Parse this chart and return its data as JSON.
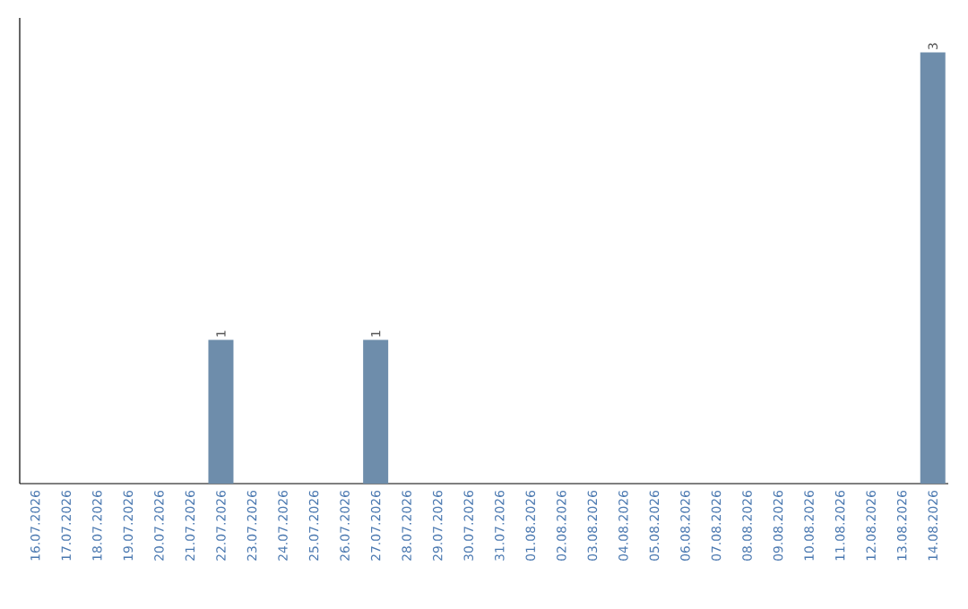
{
  "chart_data": {
    "type": "bar",
    "categories": [
      "16.07.2026",
      "17.07.2026",
      "18.07.2026",
      "19.07.2026",
      "20.07.2026",
      "21.07.2026",
      "22.07.2026",
      "23.07.2026",
      "24.07.2026",
      "25.07.2026",
      "26.07.2026",
      "27.07.2026",
      "28.07.2026",
      "29.07.2026",
      "30.07.2026",
      "31.07.2026",
      "01.08.2026",
      "02.08.2026",
      "03.08.2026",
      "04.08.2026",
      "05.08.2026",
      "06.08.2026",
      "07.08.2026",
      "08.08.2026",
      "09.08.2026",
      "10.08.2026",
      "11.08.2026",
      "12.08.2026",
      "13.08.2026",
      "14.08.2026"
    ],
    "values": [
      0,
      0,
      0,
      0,
      0,
      0,
      1,
      0,
      0,
      0,
      0,
      1,
      0,
      0,
      0,
      0,
      0,
      0,
      0,
      0,
      0,
      0,
      0,
      0,
      0,
      0,
      0,
      0,
      0,
      3
    ],
    "color": "#6e8dab",
    "value_labels": [
      null,
      null,
      null,
      null,
      null,
      null,
      "1",
      null,
      null,
      null,
      null,
      "1",
      null,
      null,
      null,
      null,
      null,
      null,
      null,
      null,
      null,
      null,
      null,
      null,
      null,
      null,
      null,
      null,
      null,
      "3"
    ]
  }
}
